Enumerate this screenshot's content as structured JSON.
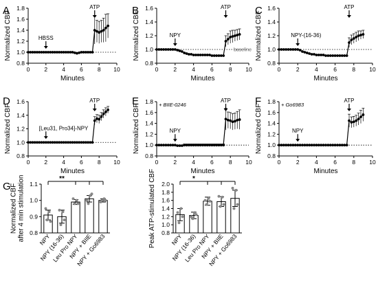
{
  "chart_data": [
    {
      "panel": "A",
      "type": "line",
      "ylabel": "Normalized CBF",
      "xlabel": "Minutes",
      "xlim": [
        0,
        10
      ],
      "ylim": [
        0.8,
        1.8
      ],
      "xticks": [
        "0",
        "2",
        "4",
        "6",
        "8",
        "10"
      ],
      "yticks": [
        "0.8",
        "1.0",
        "1.2",
        "1.4",
        "1.6",
        "1.8"
      ],
      "annotations": [
        {
          "label": "HBSS",
          "x": 2
        },
        {
          "label": "ATP",
          "x": 7.5
        }
      ],
      "treatment_label": "",
      "baseline_label": "",
      "series": {
        "x": [
          0,
          0.25,
          0.5,
          0.75,
          1,
          1.25,
          1.5,
          1.75,
          2,
          2.25,
          2.5,
          2.75,
          3,
          3.25,
          3.5,
          3.75,
          4,
          4.25,
          4.5,
          4.75,
          5,
          5.25,
          5.5,
          5.75,
          6,
          6.25,
          6.5,
          6.75,
          7,
          7.25,
          7.5,
          7.75,
          8,
          8.25,
          8.5,
          8.75,
          9
        ],
        "y": [
          1.0,
          1.0,
          1.0,
          1.0,
          1.0,
          1.0,
          1.0,
          1.0,
          1.0,
          1.0,
          1.0,
          1.0,
          1.0,
          1.0,
          1.0,
          1.0,
          1.0,
          1.0,
          1.0,
          1.0,
          1.0,
          0.99,
          0.98,
          0.99,
          1.0,
          1.0,
          1.0,
          1.0,
          1.0,
          1.0,
          1.4,
          1.38,
          1.36,
          1.38,
          1.4,
          1.44,
          1.48
        ],
        "err": [
          0.01,
          0.01,
          0.01,
          0.01,
          0.01,
          0.01,
          0.01,
          0.01,
          0.01,
          0.01,
          0.01,
          0.01,
          0.01,
          0.01,
          0.01,
          0.01,
          0.01,
          0.01,
          0.01,
          0.01,
          0.01,
          0.01,
          0.01,
          0.01,
          0.01,
          0.01,
          0.01,
          0.01,
          0.01,
          0.01,
          0.25,
          0.2,
          0.2,
          0.2,
          0.22,
          0.25,
          0.22
        ]
      }
    },
    {
      "panel": "B",
      "type": "line",
      "ylabel": "Normalized CBF",
      "xlabel": "Minutes",
      "xlim": [
        0,
        10
      ],
      "ylim": [
        0.8,
        1.6
      ],
      "xticks": [
        "0",
        "2",
        "4",
        "6",
        "8",
        "10"
      ],
      "yticks": [
        "0.8",
        "1.0",
        "1.2",
        "1.4",
        "1.6"
      ],
      "annotations": [
        {
          "label": "NPY",
          "x": 2
        },
        {
          "label": "ATP",
          "x": 7.5
        }
      ],
      "treatment_label": "",
      "baseline_label": "baseline",
      "series": {
        "x": [
          0,
          0.25,
          0.5,
          0.75,
          1,
          1.25,
          1.5,
          1.75,
          2,
          2.25,
          2.5,
          2.75,
          3,
          3.25,
          3.5,
          3.75,
          4,
          4.25,
          4.5,
          4.75,
          5,
          5.25,
          5.5,
          5.75,
          6,
          6.25,
          6.5,
          6.75,
          7,
          7.25,
          7.5,
          7.75,
          8,
          8.25,
          8.5,
          8.75,
          9
        ],
        "y": [
          1.0,
          1.0,
          1.0,
          1.0,
          1.0,
          1.0,
          1.0,
          1.0,
          1.0,
          0.99,
          0.98,
          0.97,
          0.95,
          0.94,
          0.93,
          0.93,
          0.92,
          0.92,
          0.92,
          0.92,
          0.92,
          0.92,
          0.92,
          0.92,
          0.91,
          0.91,
          0.91,
          0.91,
          0.91,
          0.91,
          1.12,
          1.15,
          1.18,
          1.19,
          1.2,
          1.21,
          1.22
        ],
        "err": [
          0.01,
          0.01,
          0.01,
          0.01,
          0.01,
          0.01,
          0.01,
          0.01,
          0.01,
          0.01,
          0.01,
          0.01,
          0.01,
          0.01,
          0.01,
          0.01,
          0.01,
          0.01,
          0.01,
          0.01,
          0.01,
          0.01,
          0.01,
          0.01,
          0.01,
          0.01,
          0.01,
          0.01,
          0.01,
          0.01,
          0.08,
          0.08,
          0.09,
          0.09,
          0.08,
          0.08,
          0.08
        ]
      }
    },
    {
      "panel": "C",
      "type": "line",
      "ylabel": "Normalized CBF",
      "xlabel": "Minutes",
      "xlim": [
        0,
        10
      ],
      "ylim": [
        0.8,
        1.6
      ],
      "xticks": [
        "0",
        "2",
        "4",
        "6",
        "8",
        "10"
      ],
      "yticks": [
        "0.8",
        "1.0",
        "1.2",
        "1.4",
        "1.6"
      ],
      "annotations": [
        {
          "label": "NPY-(16-36)",
          "x": 2
        },
        {
          "label": "ATP",
          "x": 7.5
        }
      ],
      "treatment_label": "",
      "baseline_label": "",
      "series": {
        "x": [
          0,
          0.25,
          0.5,
          0.75,
          1,
          1.25,
          1.5,
          1.75,
          2,
          2.25,
          2.5,
          2.75,
          3,
          3.25,
          3.5,
          3.75,
          4,
          4.25,
          4.5,
          4.75,
          5,
          5.25,
          5.5,
          5.75,
          6,
          6.25,
          6.5,
          6.75,
          7,
          7.25,
          7.5,
          7.75,
          8,
          8.25,
          8.5,
          8.75,
          9
        ],
        "y": [
          1.0,
          1.0,
          1.0,
          1.0,
          1.0,
          1.0,
          1.0,
          1.0,
          1.0,
          0.99,
          0.97,
          0.96,
          0.95,
          0.94,
          0.93,
          0.93,
          0.92,
          0.92,
          0.92,
          0.92,
          0.91,
          0.91,
          0.91,
          0.91,
          0.91,
          0.91,
          0.91,
          0.91,
          0.91,
          0.91,
          1.1,
          1.14,
          1.16,
          1.18,
          1.2,
          1.21,
          1.22
        ],
        "err": [
          0.01,
          0.01,
          0.01,
          0.01,
          0.01,
          0.01,
          0.01,
          0.01,
          0.01,
          0.01,
          0.01,
          0.01,
          0.01,
          0.01,
          0.01,
          0.01,
          0.01,
          0.01,
          0.01,
          0.01,
          0.01,
          0.01,
          0.01,
          0.01,
          0.01,
          0.01,
          0.01,
          0.01,
          0.01,
          0.01,
          0.07,
          0.07,
          0.07,
          0.07,
          0.07,
          0.06,
          0.06
        ]
      }
    },
    {
      "panel": "D",
      "type": "line",
      "ylabel": "Normalized CBF",
      "xlabel": "Minutes",
      "xlim": [
        0,
        10
      ],
      "ylim": [
        0.8,
        1.6
      ],
      "xticks": [
        "0",
        "2",
        "4",
        "6",
        "8",
        "10"
      ],
      "yticks": [
        "0.8",
        "1.0",
        "1.2",
        "1.4",
        "1.6"
      ],
      "annotations": [
        {
          "label": "[Leu31, Pro34]-NPY",
          "x": 2
        },
        {
          "label": "ATP",
          "x": 7.5
        }
      ],
      "treatment_label": "",
      "baseline_label": "",
      "series": {
        "x": [
          0,
          0.25,
          0.5,
          0.75,
          1,
          1.25,
          1.5,
          1.75,
          2,
          2.25,
          2.5,
          2.75,
          3,
          3.25,
          3.5,
          3.75,
          4,
          4.25,
          4.5,
          4.75,
          5,
          5.25,
          5.5,
          5.75,
          6,
          6.25,
          6.5,
          6.75,
          7,
          7.25,
          7.5,
          7.75,
          8,
          8.25,
          8.5,
          8.75,
          9
        ],
        "y": [
          1.0,
          1.0,
          1.0,
          1.0,
          1.0,
          1.0,
          1.0,
          1.0,
          1.0,
          1.0,
          1.0,
          1.0,
          1.0,
          1.0,
          1.0,
          1.0,
          1.0,
          1.0,
          1.0,
          1.0,
          1.0,
          1.0,
          1.0,
          1.0,
          1.0,
          1.0,
          1.0,
          1.0,
          1.0,
          1.0,
          1.32,
          1.35,
          1.34,
          1.38,
          1.42,
          1.45,
          1.48
        ],
        "err": [
          0.01,
          0.01,
          0.01,
          0.01,
          0.01,
          0.01,
          0.01,
          0.01,
          0.01,
          0.01,
          0.01,
          0.01,
          0.01,
          0.01,
          0.01,
          0.01,
          0.01,
          0.01,
          0.01,
          0.01,
          0.01,
          0.01,
          0.01,
          0.01,
          0.01,
          0.01,
          0.01,
          0.01,
          0.01,
          0.01,
          0.06,
          0.06,
          0.06,
          0.06,
          0.06,
          0.06,
          0.05
        ]
      }
    },
    {
      "panel": "E",
      "type": "line",
      "ylabel": "Normalized CBF",
      "xlabel": "Minutes",
      "xlim": [
        0,
        10
      ],
      "ylim": [
        0.8,
        1.8
      ],
      "xticks": [
        "0",
        "2",
        "4",
        "6",
        "8",
        "10"
      ],
      "yticks": [
        "0.8",
        "1.0",
        "1.2",
        "1.4",
        "1.6",
        "1.8"
      ],
      "annotations": [
        {
          "label": "NPY",
          "x": 2
        },
        {
          "label": "ATP",
          "x": 7.5
        }
      ],
      "treatment_label": "+ BIIE-0246",
      "baseline_label": "",
      "series": {
        "x": [
          0,
          0.25,
          0.5,
          0.75,
          1,
          1.25,
          1.5,
          1.75,
          2,
          2.25,
          2.5,
          2.75,
          3,
          3.25,
          3.5,
          3.75,
          4,
          4.25,
          4.5,
          4.75,
          5,
          5.25,
          5.5,
          5.75,
          6,
          6.25,
          6.5,
          6.75,
          7,
          7.25,
          7.5,
          7.75,
          8,
          8.25,
          8.5,
          8.75,
          9
        ],
        "y": [
          1.0,
          1.0,
          1.0,
          1.0,
          1.0,
          1.0,
          1.0,
          1.0,
          1.0,
          0.99,
          0.99,
          0.99,
          1.0,
          1.0,
          1.0,
          1.0,
          1.0,
          1.0,
          1.0,
          1.0,
          1.0,
          1.0,
          1.0,
          1.0,
          1.0,
          1.0,
          1.0,
          1.0,
          1.0,
          1.0,
          1.48,
          1.46,
          1.45,
          1.43,
          1.44,
          1.46,
          1.47
        ],
        "err": [
          0.01,
          0.01,
          0.01,
          0.01,
          0.01,
          0.01,
          0.01,
          0.01,
          0.01,
          0.01,
          0.01,
          0.01,
          0.02,
          0.02,
          0.02,
          0.02,
          0.02,
          0.02,
          0.02,
          0.02,
          0.02,
          0.02,
          0.02,
          0.02,
          0.02,
          0.02,
          0.02,
          0.02,
          0.02,
          0.02,
          0.2,
          0.15,
          0.15,
          0.15,
          0.15,
          0.16,
          0.18
        ]
      }
    },
    {
      "panel": "F",
      "type": "line",
      "ylabel": "Normalized CBF",
      "xlabel": "Minutes",
      "xlim": [
        0,
        10
      ],
      "ylim": [
        0.8,
        1.8
      ],
      "xticks": [
        "0",
        "2",
        "4",
        "6",
        "8",
        "10"
      ],
      "yticks": [
        "0.8",
        "1.0",
        "1.2",
        "1.4",
        "1.6",
        "1.8"
      ],
      "annotations": [
        {
          "label": "NPY",
          "x": 2
        },
        {
          "label": "ATP",
          "x": 7.5
        }
      ],
      "treatment_label": "+ Go6983",
      "baseline_label": "",
      "series": {
        "x": [
          0,
          0.25,
          0.5,
          0.75,
          1,
          1.25,
          1.5,
          1.75,
          2,
          2.25,
          2.5,
          2.75,
          3,
          3.25,
          3.5,
          3.75,
          4,
          4.25,
          4.5,
          4.75,
          5,
          5.25,
          5.5,
          5.75,
          6,
          6.25,
          6.5,
          6.75,
          7,
          7.25,
          7.5,
          7.75,
          8,
          8.25,
          8.5,
          8.75,
          9
        ],
        "y": [
          1.0,
          1.0,
          1.0,
          1.0,
          1.0,
          1.0,
          1.0,
          1.0,
          1.0,
          1.0,
          1.0,
          1.0,
          1.0,
          1.0,
          1.0,
          1.0,
          1.0,
          1.0,
          1.0,
          1.0,
          1.0,
          1.0,
          1.0,
          1.0,
          1.0,
          1.0,
          1.0,
          1.0,
          1.0,
          1.0,
          1.45,
          1.42,
          1.43,
          1.45,
          1.48,
          1.52,
          1.56
        ],
        "err": [
          0.01,
          0.01,
          0.01,
          0.01,
          0.01,
          0.01,
          0.01,
          0.01,
          0.01,
          0.01,
          0.01,
          0.01,
          0.01,
          0.01,
          0.01,
          0.01,
          0.01,
          0.01,
          0.01,
          0.01,
          0.01,
          0.01,
          0.01,
          0.01,
          0.01,
          0.01,
          0.01,
          0.01,
          0.01,
          0.01,
          0.12,
          0.1,
          0.1,
          0.1,
          0.11,
          0.12,
          0.12
        ]
      }
    },
    {
      "panel": "G",
      "type": "bar",
      "ylabel": [
        "Normalized CBF",
        "after 4 min stimulation"
      ],
      "categories": [
        "NPY",
        "NPY (16-36)",
        "Leu Pro NPY",
        "NPY + BIIE",
        "NPY + Go6983"
      ],
      "values": [
        0.91,
        0.9,
        0.99,
        1.01,
        1.0
      ],
      "errors": [
        0.03,
        0.04,
        0.015,
        0.02,
        0.01
      ],
      "points": [
        [
          0.88,
          0.93,
          0.95,
          0.87
        ],
        [
          0.85,
          0.93,
          0.94,
          0.88
        ],
        [
          0.98,
          1.0,
          1.01,
          0.98
        ],
        [
          0.98,
          1.03,
          1.0,
          1.04
        ],
        [
          1.0,
          1.01,
          0.99,
          1.0
        ]
      ],
      "ylim": [
        0.8,
        1.1
      ],
      "yticks": [
        "0.8",
        "0.9",
        "1.0",
        "1.1"
      ],
      "significance": "**"
    },
    {
      "panel": "G2",
      "type": "bar",
      "ylabel": "Peak ATP-stimulated CBF",
      "categories": [
        "NPY",
        "NPY (16-36)",
        "Leu Pro NPY",
        "NPY + BIIE",
        "NPY + Go6983"
      ],
      "values": [
        1.25,
        1.23,
        1.58,
        1.57,
        1.65
      ],
      "errors": [
        0.15,
        0.08,
        0.1,
        0.12,
        0.2
      ],
      "points": [
        [
          1.05,
          1.4,
          1.3,
          1.2
        ],
        [
          1.15,
          1.3,
          1.2,
          1.25
        ],
        [
          1.5,
          1.65,
          1.6,
          1.58
        ],
        [
          1.45,
          1.68,
          1.7,
          1.5
        ],
        [
          1.4,
          1.85,
          1.9,
          1.5
        ]
      ],
      "ylim": [
        0.8,
        2.0
      ],
      "yticks": [
        "0.8",
        "1.0",
        "1.2",
        "1.4",
        "1.6",
        "1.8",
        "2.0"
      ],
      "significance": "*"
    }
  ]
}
